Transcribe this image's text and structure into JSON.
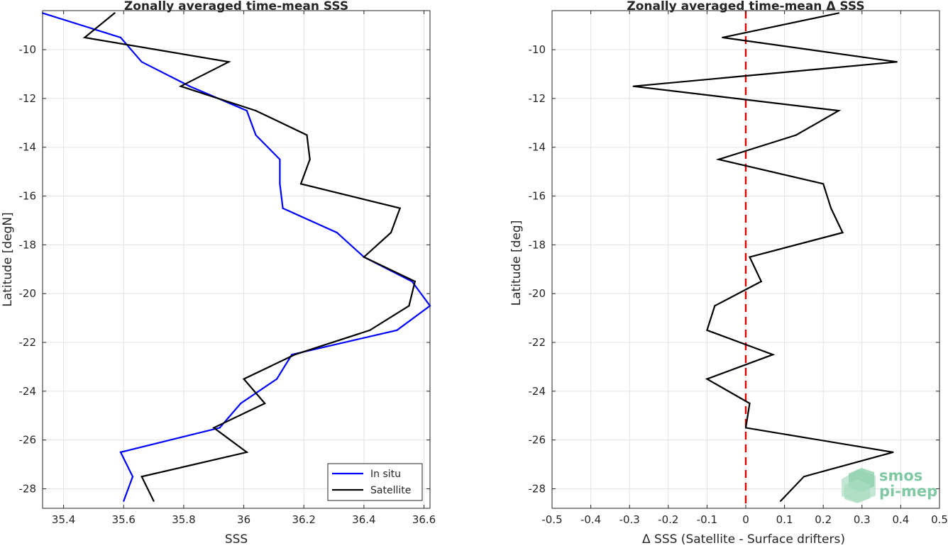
{
  "chart_data": [
    {
      "type": "line",
      "title": "Zonally averaged time-mean SSS",
      "xlabel": "SSS",
      "ylabel": "Latitude [degN]",
      "xlim": [
        35.33,
        36.62
      ],
      "ylim": [
        -28.8,
        -8.4
      ],
      "xticks": [
        35.4,
        35.6,
        35.8,
        36,
        36.2,
        36.4,
        36.6
      ],
      "xtick_labels": [
        "35.4",
        "35.6",
        "35.8",
        "36",
        "36.2",
        "36.4",
        "36.6"
      ],
      "yticks": [
        -10,
        -12,
        -14,
        -16,
        -18,
        -20,
        -22,
        -24,
        -26,
        -28
      ],
      "ytick_labels": [
        "-10",
        "-12",
        "-14",
        "-16",
        "-18",
        "-20",
        "-22",
        "-24",
        "-26",
        "-28"
      ],
      "grid": true,
      "legend_position": "bottom-right",
      "y": [
        -8.5,
        -9.5,
        -10.5,
        -11.5,
        -12.5,
        -13.5,
        -14.5,
        -15.5,
        -16.5,
        -17.5,
        -18.5,
        -19.5,
        -20.5,
        -21.5,
        -22.5,
        -23.5,
        -24.5,
        -25.5,
        -26.5,
        -27.5,
        -28.5
      ],
      "series": [
        {
          "name": "In situ",
          "color": "#0000ff",
          "values": [
            35.33,
            35.59,
            35.66,
            35.82,
            36.01,
            36.04,
            36.12,
            36.12,
            36.13,
            36.31,
            36.4,
            36.56,
            36.62,
            36.51,
            36.16,
            36.11,
            35.99,
            35.92,
            35.59,
            35.63,
            35.6
          ]
        },
        {
          "name": "Satellite",
          "color": "#000000",
          "values": [
            35.57,
            35.47,
            35.95,
            35.79,
            36.04,
            36.21,
            36.22,
            36.19,
            36.52,
            36.49,
            36.4,
            36.57,
            36.55,
            36.42,
            36.17,
            36.0,
            36.07,
            35.9,
            36.01,
            35.66,
            35.7
          ]
        }
      ]
    },
    {
      "type": "line",
      "title": "Zonally averaged time-mean Δ SSS",
      "xlabel": "Δ SSS (Satellite - Surface drifters)",
      "ylabel": "Latitude [deg]",
      "xlim": [
        -0.5,
        0.5
      ],
      "ylim": [
        -28.8,
        -8.4
      ],
      "xticks": [
        -0.5,
        -0.4,
        -0.3,
        -0.2,
        -0.1,
        0,
        0.1,
        0.2,
        0.3,
        0.4,
        0.5
      ],
      "xtick_labels": [
        "-0.5",
        "-0.4",
        "-0.3",
        "-0.2",
        "-0.1",
        "0",
        "0.1",
        "0.2",
        "0.3",
        "0.4",
        "0.5"
      ],
      "yticks": [
        -10,
        -12,
        -14,
        -16,
        -18,
        -20,
        -22,
        -24,
        -26,
        -28
      ],
      "ytick_labels": [
        "-10",
        "-12",
        "-14",
        "-16",
        "-18",
        "-20",
        "-22",
        "-24",
        "-26",
        "-28"
      ],
      "grid": true,
      "zero_line": {
        "x": 0,
        "color": "#e00000",
        "style": "dashed"
      },
      "y": [
        -8.5,
        -9.5,
        -10.5,
        -11.5,
        -12.5,
        -13.5,
        -14.5,
        -15.5,
        -16.5,
        -17.5,
        -18.5,
        -19.5,
        -20.5,
        -21.5,
        -22.5,
        -23.5,
        -24.5,
        -25.5,
        -26.5,
        -27.5,
        -28.5
      ],
      "series": [
        {
          "color": "#000000",
          "values": [
            0.24,
            -0.06,
            0.39,
            -0.29,
            0.24,
            0.13,
            -0.07,
            0.2,
            0.22,
            0.25,
            0.01,
            0.04,
            -0.08,
            -0.1,
            0.07,
            -0.1,
            0.01,
            0.0,
            0.38,
            0.15,
            0.09
          ]
        }
      ]
    }
  ],
  "logo": {
    "line1": "smos",
    "line2": "pi-mep",
    "color": "#7fc8a3"
  }
}
